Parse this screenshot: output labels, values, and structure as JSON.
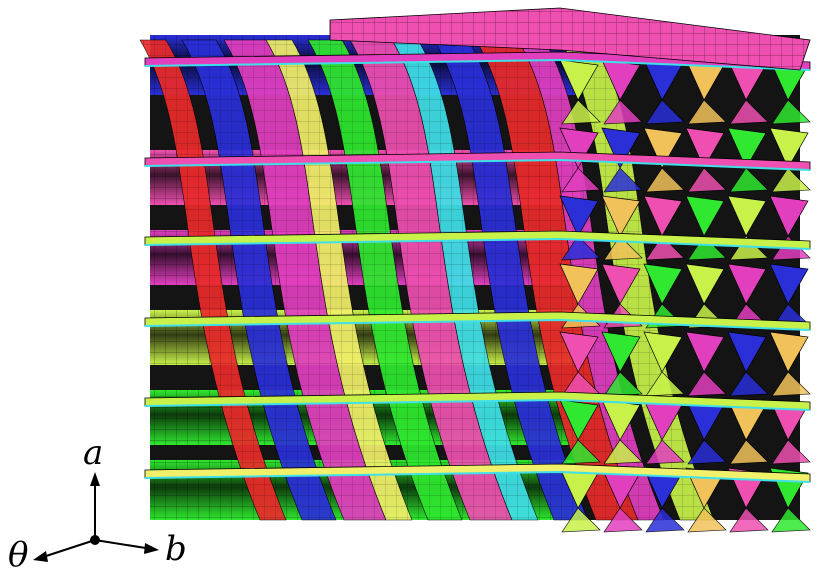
{
  "axes": {
    "vertical_label": "a",
    "right_label": "b",
    "left_label": "θ"
  },
  "colors": {
    "magenta": "#e23fbf",
    "pink": "#ef4fb0",
    "blue": "#2a2fd8",
    "red": "#ea2a2a",
    "green": "#2fe82f",
    "yellow_green": "#c8f24a",
    "yellow": "#f1f06a",
    "orange": "#f1c25a",
    "cyan": "#3fe0e8",
    "purple": "#a23ce0",
    "dark": "#1a1a1a"
  },
  "icons": [
    "axis-triad-icon"
  ]
}
